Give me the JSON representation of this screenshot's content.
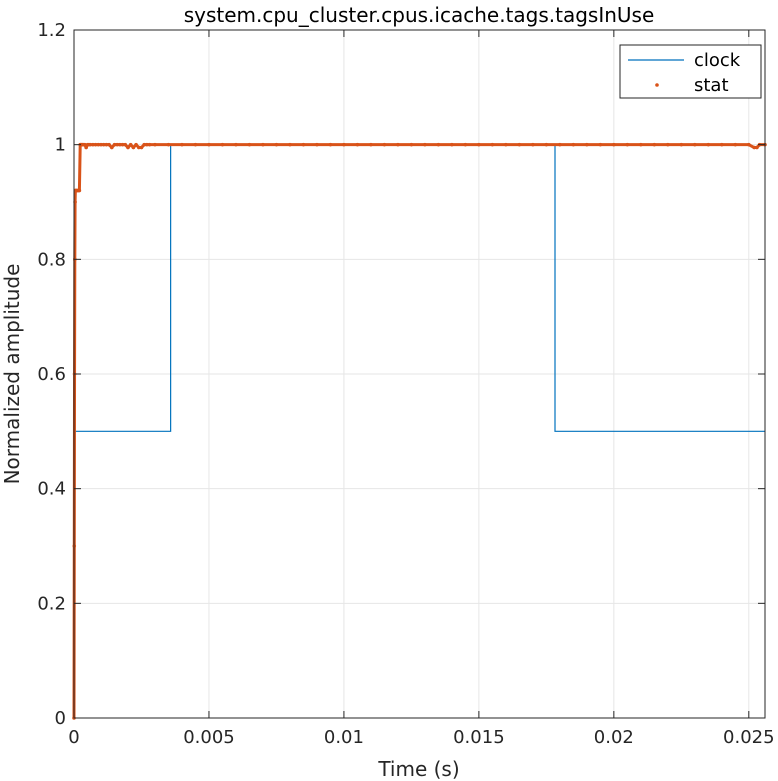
{
  "chart_data": {
    "type": "line",
    "title": "system.cpu_cluster.cpus.icache.tags.tagsInUse",
    "xlabel": "Time (s)",
    "ylabel": "Normalized amplitude",
    "xlim": [
      0,
      0.0256
    ],
    "ylim": [
      0,
      1.2
    ],
    "xticks": [
      0,
      0.005,
      0.01,
      0.015,
      0.02,
      0.025
    ],
    "xtick_labels": [
      "0",
      "0.005",
      "0.01",
      "0.015",
      "0.02",
      "0.025"
    ],
    "yticks": [
      0,
      0.2,
      0.4,
      0.6,
      0.8,
      1,
      1.2
    ],
    "ytick_labels": [
      "0",
      "0.2",
      "0.4",
      "0.6",
      "0.8",
      "1",
      "1.2"
    ],
    "grid": true,
    "legend": "top-right",
    "series": [
      {
        "name": "clock",
        "style": "line",
        "color": "#0072BD",
        "x": [
          0,
          3e-05,
          3e-05,
          0.00358,
          0.00358,
          0.01782,
          0.01782,
          0.0256
        ],
        "y": [
          0,
          0.5,
          0.5,
          0.5,
          1,
          1,
          0.5,
          0.5
        ]
      },
      {
        "name": "stat",
        "style": "points",
        "color": "#D95319",
        "x": [
          0,
          1e-05,
          2e-05,
          3e-05,
          4e-05,
          5e-05,
          6e-05,
          8e-05,
          0.0001,
          0.00012,
          0.00015,
          0.00018,
          0.0002,
          0.00023,
          0.00025,
          0.00028,
          0.0003,
          0.00032,
          0.00035,
          0.0004,
          0.00045,
          0.0005,
          0.00055,
          0.0006,
          0.0007,
          0.0008,
          0.0009,
          0.001,
          0.0011,
          0.0012,
          0.0013,
          0.0014,
          0.0015,
          0.0016,
          0.0017,
          0.0018,
          0.0019,
          0.002,
          0.0021,
          0.0022,
          0.0023,
          0.0024,
          0.0025,
          0.0026,
          0.0027,
          0.0028,
          0.003,
          0.0035,
          0.004,
          0.0045,
          0.005,
          0.0055,
          0.006,
          0.0065,
          0.007,
          0.0075,
          0.008,
          0.0085,
          0.009,
          0.0095,
          0.01,
          0.0105,
          0.011,
          0.0115,
          0.012,
          0.0125,
          0.013,
          0.0135,
          0.014,
          0.0145,
          0.015,
          0.0155,
          0.016,
          0.0165,
          0.017,
          0.0175,
          0.018,
          0.0185,
          0.019,
          0.0195,
          0.02,
          0.0205,
          0.021,
          0.0215,
          0.022,
          0.0225,
          0.023,
          0.0235,
          0.024,
          0.0245,
          0.025,
          0.0252,
          0.0253,
          0.0254,
          0.0256
        ],
        "y": [
          0,
          0.3,
          0.6,
          0.8,
          0.9,
          0.92,
          0.92,
          0.92,
          0.92,
          0.92,
          0.92,
          0.92,
          0.92,
          1,
          1,
          1,
          1,
          1,
          1,
          1,
          0.995,
          1,
          1,
          1,
          1,
          1,
          1,
          1,
          1,
          1,
          1,
          0.995,
          1,
          1,
          1,
          1,
          1,
          0.995,
          1,
          0.995,
          1,
          0.995,
          0.995,
          1,
          1,
          1,
          1,
          1,
          1,
          1,
          1,
          1,
          1,
          1,
          1,
          1,
          1,
          1,
          1,
          1,
          1,
          1,
          1,
          1,
          1,
          1,
          1,
          1,
          1,
          1,
          1,
          1,
          1,
          1,
          1,
          1,
          1,
          1,
          1,
          1,
          1,
          1,
          1,
          1,
          1,
          1,
          1,
          1,
          1,
          1,
          1,
          0.995,
          0.995,
          1,
          1
        ]
      }
    ]
  }
}
